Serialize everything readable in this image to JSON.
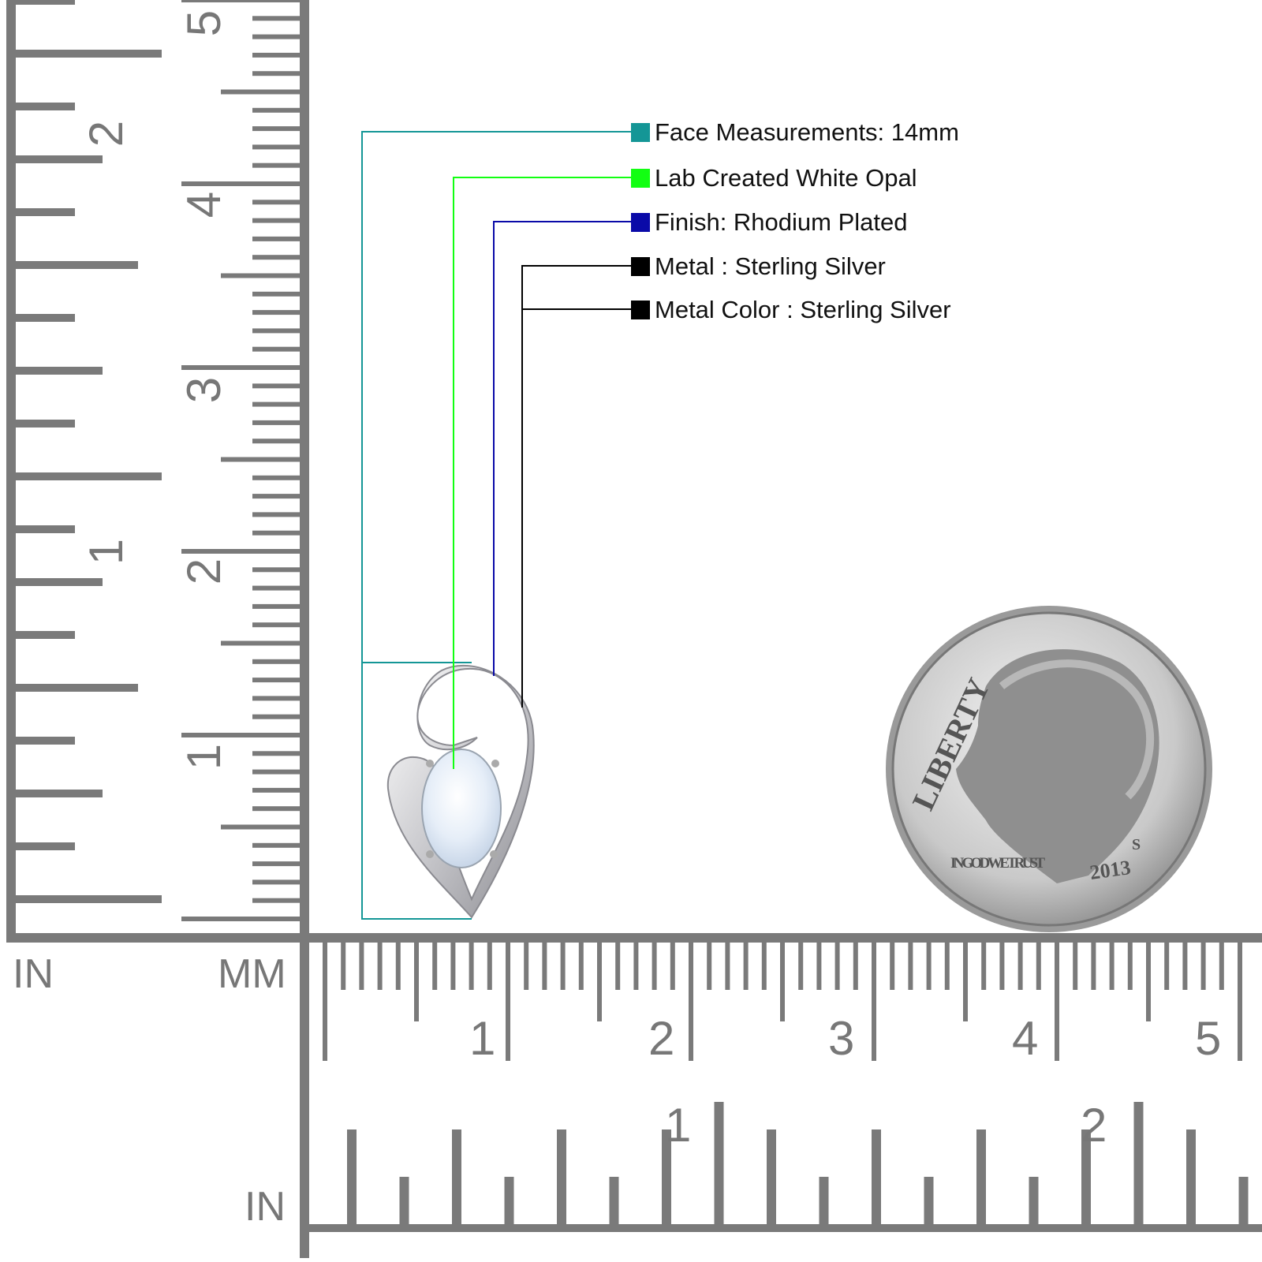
{
  "legend": [
    {
      "label": "Face Measurements: 14mm",
      "color": "#149696"
    },
    {
      "label": "Lab Created White Opal",
      "color": "#12ff12"
    },
    {
      "label": "Finish: Rhodium Plated",
      "color": "#0a0aa8"
    },
    {
      "label": "Metal : Sterling Silver",
      "color": "#000000"
    },
    {
      "label": "Metal Color : Sterling Silver",
      "color": "#000000"
    }
  ],
  "ruler": {
    "left_unit_in": "IN",
    "left_unit_mm": "MM",
    "bottom_unit_in": "IN",
    "left_mm_labels": [
      "1",
      "2",
      "3",
      "4",
      "5"
    ],
    "left_in_labels": [
      "1",
      "2"
    ],
    "bottom_mm_labels": [
      "1",
      "2",
      "3",
      "4",
      "5"
    ],
    "bottom_in_labels": [
      "1",
      "2"
    ],
    "color": "#7a7a7a"
  },
  "coin": {
    "top_text": "LIBERTY",
    "motto": "IN GOD WE TRUST",
    "year": "2013",
    "mint_mark": "S"
  }
}
